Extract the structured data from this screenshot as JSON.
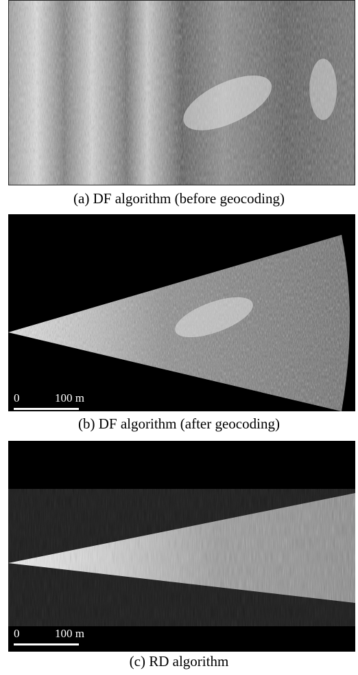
{
  "panels": [
    {
      "caption": "(a) DF algorithm (before geocoding)"
    },
    {
      "caption": "(b) DF algorithm (after geocoding)",
      "scale_zero": "0",
      "scale_label": "100 m"
    },
    {
      "caption": "(c) RD algorithm",
      "scale_zero": "0",
      "scale_label": "100 m"
    }
  ],
  "colors": {
    "background": "#ffffff",
    "sonar_black": "#000000",
    "sonar_gray": "#7a7a7a",
    "scale_bar": "#ffffff"
  }
}
